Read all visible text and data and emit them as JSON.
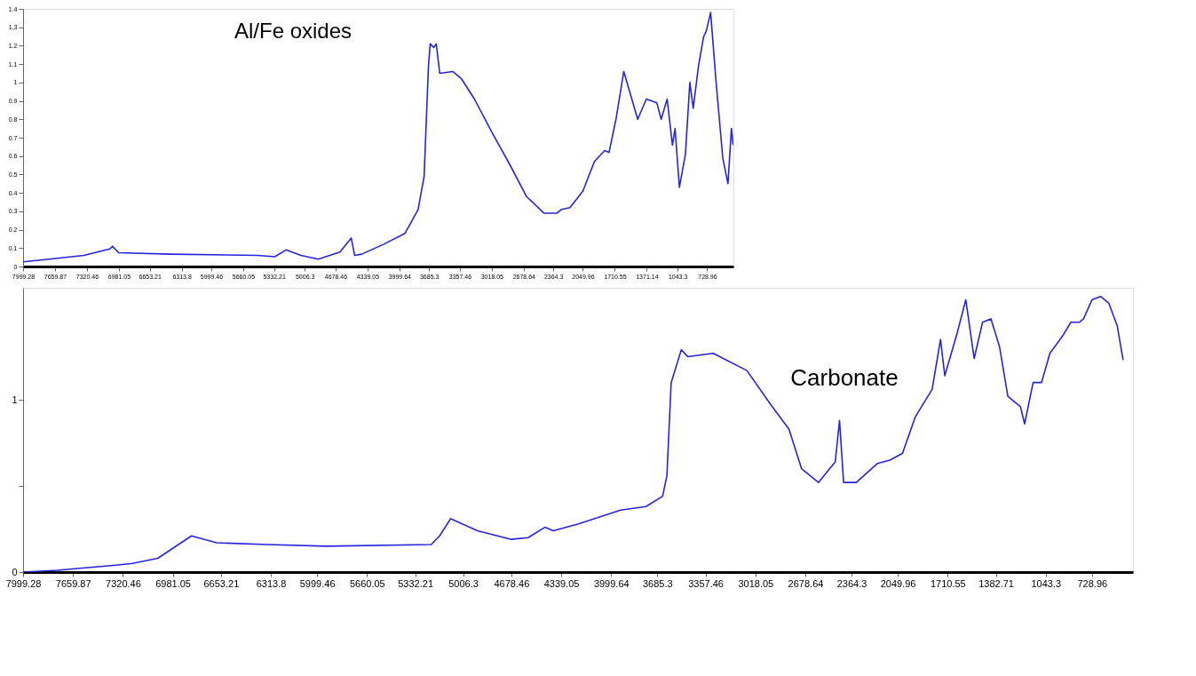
{
  "chart_data": [
    {
      "type": "line",
      "xlim": [
        7999.28,
        450
      ],
      "ylim": [
        0,
        1.4
      ],
      "yticks": [
        0,
        0.1,
        0.2,
        0.3,
        0.4,
        0.5,
        0.6,
        0.7,
        0.8,
        0.9,
        1,
        1.1,
        1.2,
        1.3,
        1.4
      ],
      "xticks": [
        7999.28,
        7659.87,
        7320.46,
        6981.05,
        6653.21,
        6313.8,
        5999.46,
        5660.05,
        5332.21,
        5006.3,
        4678.46,
        4339.05,
        3999.64,
        3685.3,
        3357.46,
        3018.05,
        2678.64,
        2364.3,
        2049.96,
        1710.55,
        1371.14,
        1043.3,
        728.96
      ],
      "grid": false,
      "legend": false,
      "marker": "none",
      "line_style": "solid",
      "annotations": [
        "Al/Fe oxides"
      ],
      "series": [
        {
          "color": "#2424e0",
          "x": [
            7999,
            7722,
            7353,
            7077,
            7049,
            6984,
            6431,
            5508,
            5324,
            5204,
            5047,
            4862,
            4632,
            4512,
            4475,
            4401,
            4170,
            3940,
            3801,
            3737,
            3691,
            3672,
            3635,
            3608,
            3571,
            3433,
            3340,
            3202,
            3017,
            2833,
            2648,
            2464,
            2325,
            2279,
            2187,
            2049,
            1928,
            1818,
            1772,
            1698,
            1615,
            1467,
            1375,
            1264,
            1218,
            1154,
            1098,
            1070,
            1024,
            960,
            913,
            877,
            821,
            766,
            738,
            692,
            637,
            563,
            508,
            471,
            453
          ],
          "values": [
            0.025,
            0.04,
            0.06,
            0.095,
            0.11,
            0.075,
            0.067,
            0.06,
            0.053,
            0.09,
            0.06,
            0.04,
            0.078,
            0.155,
            0.06,
            0.067,
            0.12,
            0.18,
            0.31,
            0.49,
            1.09,
            1.21,
            1.19,
            1.21,
            1.05,
            1.06,
            1.02,
            0.91,
            0.73,
            0.56,
            0.38,
            0.29,
            0.29,
            0.31,
            0.32,
            0.41,
            0.57,
            0.63,
            0.62,
            0.8,
            1.06,
            0.8,
            0.91,
            0.89,
            0.8,
            0.91,
            0.66,
            0.75,
            0.43,
            0.61,
            1.0,
            0.86,
            1.09,
            1.25,
            1.28,
            1.38,
            1.02,
            0.59,
            0.45,
            0.75,
            0.66
          ]
        }
      ]
    },
    {
      "type": "line",
      "xlim": [
        7999.28,
        450
      ],
      "ylim": [
        0,
        1.65
      ],
      "yticks": [
        0,
        {
          "value": 0.5,
          "label": null
        },
        1
      ],
      "xticks": [
        7999.28,
        7659.87,
        7320.46,
        6981.05,
        6653.21,
        6313.8,
        5999.46,
        5660.05,
        5332.21,
        5006.3,
        4678.46,
        4339.05,
        3999.64,
        3685.3,
        3357.46,
        3018.05,
        2678.64,
        2364.3,
        2049.96,
        1710.55,
        1382.71,
        1043.3,
        728.96
      ],
      "grid": false,
      "legend": false,
      "marker": "none",
      "line_style": "solid",
      "annotations": [
        "Carbonate"
      ],
      "series": [
        {
          "color": "#2424e0",
          "x": [
            7999,
            7770,
            7370,
            7255,
            7083,
            6854,
            6683,
            6339,
            5938,
            5223,
            5166,
            5091,
            4908,
            4679,
            4564,
            4450,
            4393,
            4221,
            3935,
            3763,
            3649,
            3620,
            3591,
            3562,
            3522,
            3477,
            3305,
            3076,
            2904,
            2790,
            2704,
            2589,
            2532,
            2475,
            2446,
            2418,
            2332,
            2189,
            2103,
            2017,
            1931,
            1816,
            1759,
            1730,
            1645,
            1587,
            1530,
            1473,
            1416,
            1358,
            1301,
            1215,
            1187,
            1129,
            1072,
            1015,
            929,
            872,
            815,
            786,
            729,
            671,
            614,
            557,
            517
          ],
          "values": [
            0.0,
            0.01,
            0.04,
            0.05,
            0.08,
            0.21,
            0.17,
            0.16,
            0.15,
            0.16,
            0.21,
            0.31,
            0.24,
            0.19,
            0.2,
            0.26,
            0.24,
            0.28,
            0.36,
            0.38,
            0.44,
            0.56,
            1.1,
            1.18,
            1.29,
            1.25,
            1.27,
            1.17,
            0.96,
            0.83,
            0.6,
            0.52,
            0.58,
            0.64,
            0.88,
            0.52,
            0.52,
            0.63,
            0.65,
            0.69,
            0.9,
            1.06,
            1.35,
            1.14,
            1.39,
            1.58,
            1.24,
            1.45,
            1.47,
            1.31,
            1.02,
            0.96,
            0.86,
            1.1,
            1.1,
            1.27,
            1.37,
            1.45,
            1.45,
            1.47,
            1.58,
            1.6,
            1.56,
            1.43,
            1.23
          ]
        }
      ]
    }
  ]
}
